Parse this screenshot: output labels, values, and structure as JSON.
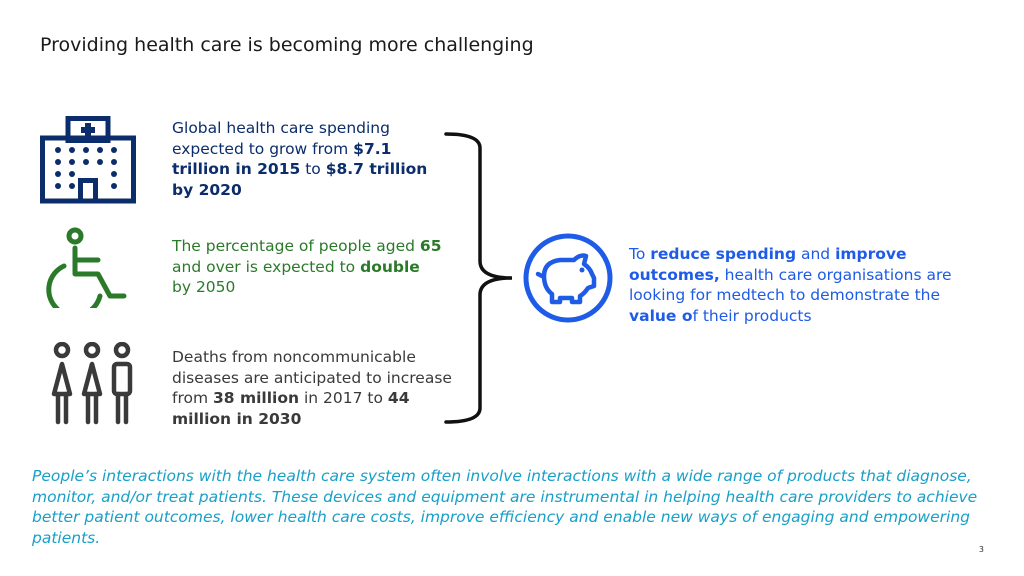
{
  "slide": {
    "title": "Providing health care is becoming more challenging",
    "page_number": "3"
  },
  "colors": {
    "navy": "#0c2d6b",
    "green": "#2a7a2a",
    "dark_gray": "#3a3a3a",
    "blue": "#1e5be6",
    "teal": "#18a0c8"
  },
  "icons": {
    "spending": "hospital-icon",
    "aging": "wheelchair-icon",
    "deaths": "people-icon",
    "conclusion": "piggy-bank-icon"
  },
  "stats": {
    "spending": {
      "t1": "Global health care spending expected to grow from ",
      "b1": "$7.1 trillion in 2015",
      "t2": " to ",
      "b2": "$8.7 trillion by 2020"
    },
    "aging": {
      "t1": "The percentage of people aged ",
      "b1": "65",
      "t2": " and over is expected to ",
      "b2": "double",
      "t3": " by 2050"
    },
    "deaths": {
      "t1": "Deaths from noncommunicable diseases are anticipated to increase from ",
      "b1": "38 million",
      "t2": " in 2017 to ",
      "b2": "44 million in 2030"
    }
  },
  "conclusion": {
    "t1": "To ",
    "b1": "reduce spending",
    "t2": " and ",
    "b2": "improve outcomes,",
    "t3": " health care organisations are looking for medtech to demonstrate the ",
    "b3": "value o",
    "t4": "f their products"
  },
  "footer": {
    "text": "People’s interactions with the health care system often involve interactions with a wide range of products that diagnose, monitor, and/or treat patients. These devices and equipment are instrumental in helping health care providers to achieve better patient outcomes, lower health care costs, improve efficiency and enable new ways of engaging and empowering patients."
  }
}
